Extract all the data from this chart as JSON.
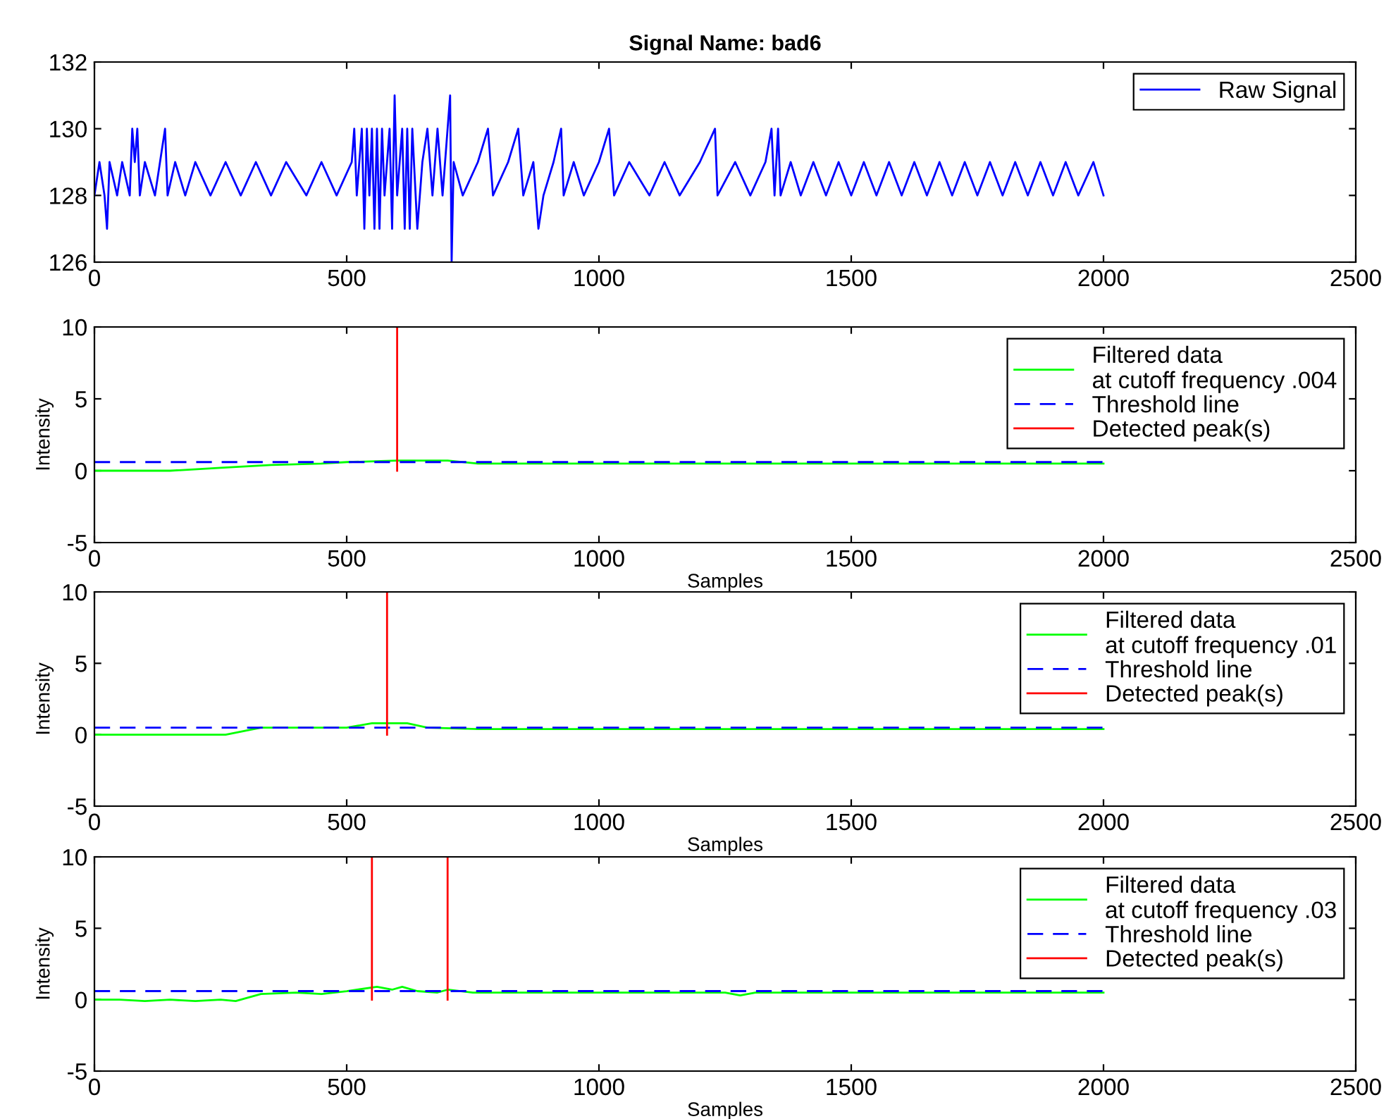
{
  "chart_data": [
    {
      "type": "line",
      "title": "Signal Name: bad6",
      "xlim": [
        0,
        2500
      ],
      "ylim": [
        126,
        132
      ],
      "xticks": [
        0,
        500,
        1000,
        1500,
        2000,
        2500
      ],
      "yticks": [
        126,
        128,
        130,
        132
      ],
      "legend": "top right",
      "grid": false,
      "series": [
        {
          "name": "Raw Signal",
          "color": "#0000ff",
          "x": [
            0,
            10,
            20,
            25,
            30,
            45,
            55,
            70,
            75,
            80,
            85,
            90,
            100,
            120,
            130,
            140,
            145,
            160,
            180,
            200,
            230,
            260,
            290,
            320,
            350,
            380,
            420,
            450,
            480,
            510,
            515,
            520,
            530,
            535,
            540,
            545,
            550,
            555,
            560,
            565,
            570,
            575,
            585,
            590,
            595,
            600,
            610,
            615,
            620,
            625,
            630,
            640,
            650,
            660,
            670,
            680,
            690,
            700,
            705,
            708,
            712,
            730,
            760,
            780,
            790,
            820,
            840,
            850,
            870,
            880,
            890,
            910,
            925,
            930,
            950,
            970,
            1000,
            1020,
            1030,
            1060,
            1100,
            1130,
            1160,
            1200,
            1230,
            1235,
            1270,
            1300,
            1330,
            1342,
            1348,
            1355,
            1360,
            1380,
            1400,
            1425,
            1450,
            1475,
            1500,
            1525,
            1550,
            1575,
            1600,
            1625,
            1650,
            1675,
            1700,
            1725,
            1750,
            1775,
            1800,
            1825,
            1850,
            1875,
            1900,
            1925,
            1950,
            1980,
            2000
          ],
          "values": [
            128,
            129,
            128,
            127,
            129,
            128,
            129,
            128,
            130,
            129,
            130,
            128,
            129,
            128,
            129,
            130,
            128,
            129,
            128,
            129,
            128,
            129,
            128,
            129,
            128,
            129,
            128,
            129,
            128,
            129,
            130,
            128,
            130,
            127,
            130,
            128,
            130,
            127,
            130,
            127,
            130,
            128,
            130,
            127,
            131,
            128,
            130,
            127,
            130,
            127,
            130,
            127,
            129,
            130,
            128,
            130,
            128,
            130,
            131,
            126,
            129,
            128,
            129,
            130,
            128,
            129,
            130,
            128,
            129,
            127,
            128,
            129,
            130,
            128,
            129,
            128,
            129,
            130,
            128,
            129,
            128,
            129,
            128,
            129,
            130,
            128,
            129,
            128,
            129,
            130,
            128,
            130,
            128,
            129,
            128,
            129,
            128,
            129,
            128,
            129,
            128,
            129,
            128,
            129,
            128,
            129,
            128,
            129,
            128,
            129,
            128,
            129,
            128,
            129,
            128,
            129,
            128,
            129,
            128
          ]
        }
      ]
    },
    {
      "type": "line",
      "xlabel": "Samples",
      "ylabel": "Intensity",
      "xlim": [
        0,
        2500
      ],
      "ylim": [
        -5,
        10
      ],
      "xticks": [
        0,
        500,
        1000,
        1500,
        2000,
        2500
      ],
      "yticks": [
        -5,
        0,
        5,
        10
      ],
      "legend": "top right",
      "grid": false,
      "series": [
        {
          "name": "Filtered data\nat cutoff frequency .004",
          "color": "#00ff00",
          "x": [
            0,
            150,
            250,
            350,
            450,
            500,
            600,
            700,
            760,
            1000,
            1500,
            2000
          ],
          "values": [
            0,
            0,
            0.2,
            0.4,
            0.5,
            0.6,
            0.7,
            0.7,
            0.5,
            0.5,
            0.5,
            0.5
          ]
        },
        {
          "name": "Threshold line",
          "color": "#0000ff",
          "line_style": "dashed",
          "x": [
            0,
            2000
          ],
          "values": [
            0.6,
            0.6
          ]
        },
        {
          "name": "Detected peak(s)",
          "color": "#ff0000",
          "x": [
            600,
            600
          ],
          "values": [
            0,
            10
          ]
        }
      ]
    },
    {
      "type": "line",
      "xlabel": "Samples",
      "ylabel": "Intensity",
      "xlim": [
        0,
        2500
      ],
      "ylim": [
        -5,
        10
      ],
      "xticks": [
        0,
        500,
        1000,
        1500,
        2000,
        2500
      ],
      "yticks": [
        -5,
        0,
        5,
        10
      ],
      "legend": "top right",
      "grid": false,
      "series": [
        {
          "name": "Filtered data\nat cutoff frequency .01",
          "color": "#00ff00",
          "x": [
            0,
            260,
            330,
            500,
            550,
            620,
            660,
            760,
            1000,
            1500,
            2000
          ],
          "values": [
            0,
            0,
            0.5,
            0.5,
            0.8,
            0.8,
            0.5,
            0.4,
            0.4,
            0.4,
            0.4
          ]
        },
        {
          "name": "Threshold line",
          "color": "#0000ff",
          "line_style": "dashed",
          "x": [
            0,
            2000
          ],
          "values": [
            0.5,
            0.5
          ]
        },
        {
          "name": "Detected peak(s)",
          "color": "#ff0000",
          "x": [
            580,
            580
          ],
          "values": [
            0,
            10
          ]
        }
      ]
    },
    {
      "type": "line",
      "xlabel": "Samples",
      "ylabel": "Intensity",
      "xlim": [
        0,
        2500
      ],
      "ylim": [
        -5,
        10
      ],
      "xticks": [
        0,
        500,
        1000,
        1500,
        2000,
        2500
      ],
      "yticks": [
        -5,
        0,
        5,
        10
      ],
      "legend": "top right",
      "grid": false,
      "series": [
        {
          "name": "Filtered data\nat cutoff frequency .03",
          "color": "#00ff00",
          "x": [
            0,
            50,
            100,
            150,
            200,
            250,
            280,
            330,
            400,
            450,
            500,
            560,
            590,
            610,
            640,
            680,
            700,
            750,
            1000,
            1250,
            1280,
            1310,
            1500,
            2000
          ],
          "values": [
            0,
            0,
            -0.1,
            0,
            -0.1,
            0,
            -0.1,
            0.4,
            0.5,
            0.4,
            0.6,
            0.9,
            0.7,
            0.9,
            0.6,
            0.5,
            0.7,
            0.5,
            0.5,
            0.5,
            0.3,
            0.5,
            0.5,
            0.5
          ]
        },
        {
          "name": "Threshold line",
          "color": "#0000ff",
          "line_style": "dashed",
          "x": [
            0,
            2000
          ],
          "values": [
            0.6,
            0.6
          ]
        },
        {
          "name": "Detected peak(s)",
          "color": "#ff0000",
          "x": [
            550,
            550
          ],
          "values": [
            0,
            10
          ]
        },
        {
          "color": "#ff0000",
          "x": [
            700,
            700
          ],
          "values": [
            0,
            10
          ]
        }
      ]
    }
  ]
}
